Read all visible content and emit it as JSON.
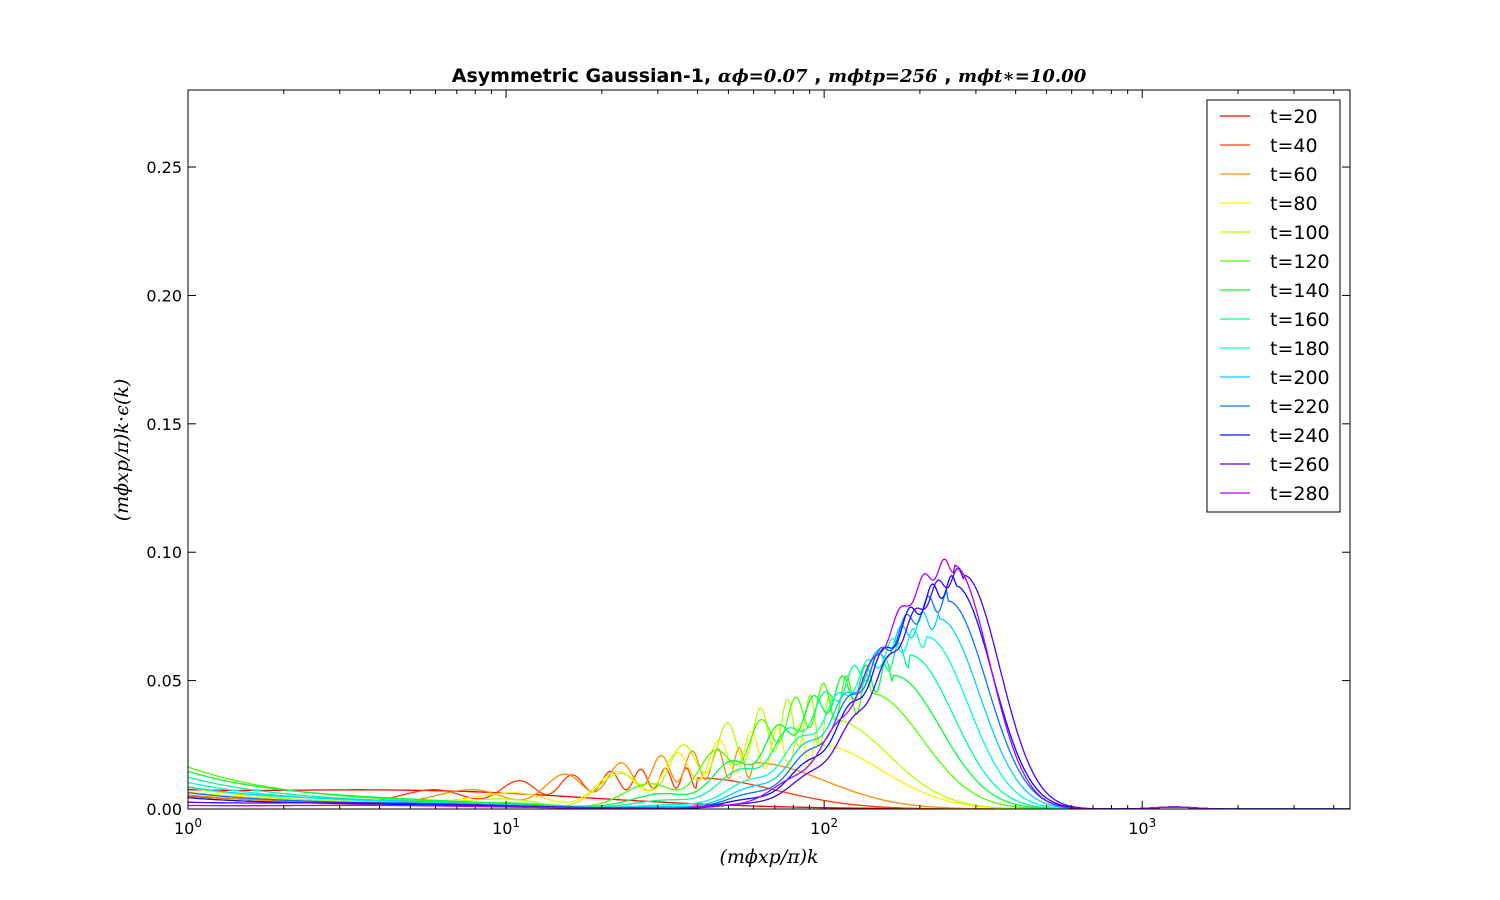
{
  "chart_data": {
    "type": "line",
    "title": "Asymmetric Gaussian-1, αϕ=0.07, mϕtp=256, mϕt∗=10.00",
    "title_parts": {
      "bold": "Asymmetric Gaussian-1,",
      "m1": "αϕ=0.07",
      "m2": "mϕtp=256",
      "m3": "mϕt∗=10.00"
    },
    "xlabel": "(mϕxp/π)k",
    "ylabel": "(mϕxp/π)k⋅ϵ(k)",
    "xscale": "log",
    "xlim": [
      1,
      4500
    ],
    "ylim": [
      0,
      0.28
    ],
    "x_ticks": [
      {
        "value": 1,
        "label": "10",
        "exp": "0"
      },
      {
        "value": 10,
        "label": "10",
        "exp": "1"
      },
      {
        "value": 100,
        "label": "10",
        "exp": "2"
      },
      {
        "value": 1000,
        "label": "10",
        "exp": "3"
      }
    ],
    "y_ticks": [
      {
        "value": 0.0,
        "label": "0.00"
      },
      {
        "value": 0.05,
        "label": "0.05"
      },
      {
        "value": 0.1,
        "label": "0.10"
      },
      {
        "value": 0.15,
        "label": "0.15"
      },
      {
        "value": 0.2,
        "label": "0.20"
      },
      {
        "value": 0.25,
        "label": "0.25"
      }
    ],
    "grid": false,
    "legend_position": "top-right",
    "series": [
      {
        "name": "t=20",
        "color": "#ff0000",
        "peak_x": 7,
        "peak_y": 0.005,
        "width": 1.2,
        "osc_amp": 0.0,
        "lowk": 0.003
      },
      {
        "name": "t=40",
        "color": "#ff3c00",
        "peak_x": 40,
        "peak_y": 0.012,
        "width": 0.55,
        "osc_amp": 0.004,
        "lowk": 0.004
      },
      {
        "name": "t=60",
        "color": "#ff8c00",
        "peak_x": 60,
        "peak_y": 0.018,
        "width": 0.5,
        "osc_amp": 0.006,
        "lowk": 0.005
      },
      {
        "name": "t=80",
        "color": "#ffee00",
        "peak_x": 95,
        "peak_y": 0.025,
        "width": 0.45,
        "osc_amp": 0.008,
        "lowk": 0.006
      },
      {
        "name": "t=100",
        "color": "#b4ff00",
        "peak_x": 105,
        "peak_y": 0.035,
        "width": 0.4,
        "osc_amp": 0.01,
        "lowk": 0.008
      },
      {
        "name": "t=120",
        "color": "#50ff00",
        "peak_x": 140,
        "peak_y": 0.045,
        "width": 0.36,
        "osc_amp": 0.008,
        "lowk": 0.016
      },
      {
        "name": "t=140",
        "color": "#00ff3c",
        "peak_x": 165,
        "peak_y": 0.052,
        "width": 0.33,
        "osc_amp": 0.006,
        "lowk": 0.014
      },
      {
        "name": "t=160",
        "color": "#00ff96",
        "peak_x": 185,
        "peak_y": 0.06,
        "width": 0.31,
        "osc_amp": 0.005,
        "lowk": 0.012
      },
      {
        "name": "t=180",
        "color": "#00ffd2",
        "peak_x": 210,
        "peak_y": 0.067,
        "width": 0.29,
        "osc_amp": 0.004,
        "lowk": 0.01
      },
      {
        "name": "t=200",
        "color": "#00d2ff",
        "peak_x": 230,
        "peak_y": 0.074,
        "width": 0.28,
        "osc_amp": 0.004,
        "lowk": 0.008
      },
      {
        "name": "t=220",
        "color": "#0078ff",
        "peak_x": 245,
        "peak_y": 0.081,
        "width": 0.27,
        "osc_amp": 0.004,
        "lowk": 0.006
      },
      {
        "name": "t=240",
        "color": "#0014ff",
        "peak_x": 258,
        "peak_y": 0.087,
        "width": 0.26,
        "osc_amp": 0.004,
        "lowk": 0.004
      },
      {
        "name": "t=260",
        "color": "#5000ff",
        "peak_x": 275,
        "peak_y": 0.091,
        "width": 0.25,
        "osc_amp": 0.003,
        "lowk": 0.002
      },
      {
        "name": "t=280",
        "color": "#b400ff",
        "peak_x": 255,
        "peak_y": 0.095,
        "width": 0.25,
        "osc_amp": 0.003,
        "lowk": 0.001
      }
    ]
  }
}
